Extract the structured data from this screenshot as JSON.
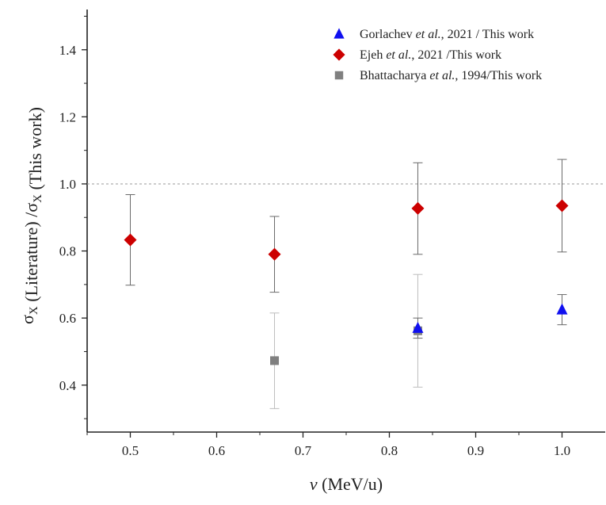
{
  "chart_data": {
    "type": "scatter",
    "title": "",
    "xlabel": "v (MeV/u)",
    "ylabel": "σX (Literature) /σX (This work)",
    "xlim": [
      0.45,
      1.05
    ],
    "ylim": [
      0.26,
      1.52
    ],
    "x_ticks": [
      0.5,
      0.6,
      0.7,
      0.8,
      0.9,
      1.0
    ],
    "y_ticks": [
      0.4,
      0.6,
      0.8,
      1.0,
      1.2,
      1.4
    ],
    "x_tick_labels": [
      "0.5",
      "0.6",
      "0.7",
      "0.8",
      "0.9",
      "1.0"
    ],
    "y_tick_labels": [
      "0.4",
      "0.6",
      "0.8",
      "1.0",
      "1.2",
      "1.4"
    ],
    "reference_line": {
      "y": 1.0,
      "style": "dashed"
    },
    "grid": false,
    "legend_position": "top-right",
    "series": [
      {
        "name": "Gorlachev et al., 2021 / This work",
        "legend": {
          "before": "Gorlachev ",
          "italic": "et al.",
          "after": ", 2021 / This work"
        },
        "marker": "triangle",
        "color": "#1010f0",
        "points": [
          {
            "x": 0.833,
            "y": 0.57,
            "err_low": 0.54,
            "err_high": 0.6
          },
          {
            "x": 1.0,
            "y": 0.625,
            "err_low": 0.58,
            "err_high": 0.67
          }
        ]
      },
      {
        "name": "Ejeh et al., 2021 /This work",
        "legend": {
          "before": "Ejeh ",
          "italic": "et al.",
          "after": ", 2021 /This work"
        },
        "marker": "diamond",
        "color": "#cc0000",
        "points": [
          {
            "x": 0.5,
            "y": 0.833,
            "err_low": 0.698,
            "err_high": 0.968
          },
          {
            "x": 0.667,
            "y": 0.79,
            "err_low": 0.677,
            "err_high": 0.903
          },
          {
            "x": 0.833,
            "y": 0.927,
            "err_low": 0.79,
            "err_high": 1.063
          },
          {
            "x": 1.0,
            "y": 0.935,
            "err_low": 0.797,
            "err_high": 1.073
          }
        ]
      },
      {
        "name": "Bhattacharya et al., 1994/This work",
        "legend": {
          "before": "Bhattacharya ",
          "italic": "et al.",
          "after": ", 1994/This work"
        },
        "marker": "square",
        "color": "#808080",
        "points": [
          {
            "x": 0.667,
            "y": 0.473,
            "err_low": 0.33,
            "err_high": 0.615
          },
          {
            "x": 0.833,
            "y": 0.562,
            "err_low": 0.394,
            "err_high": 0.73
          }
        ]
      }
    ]
  }
}
